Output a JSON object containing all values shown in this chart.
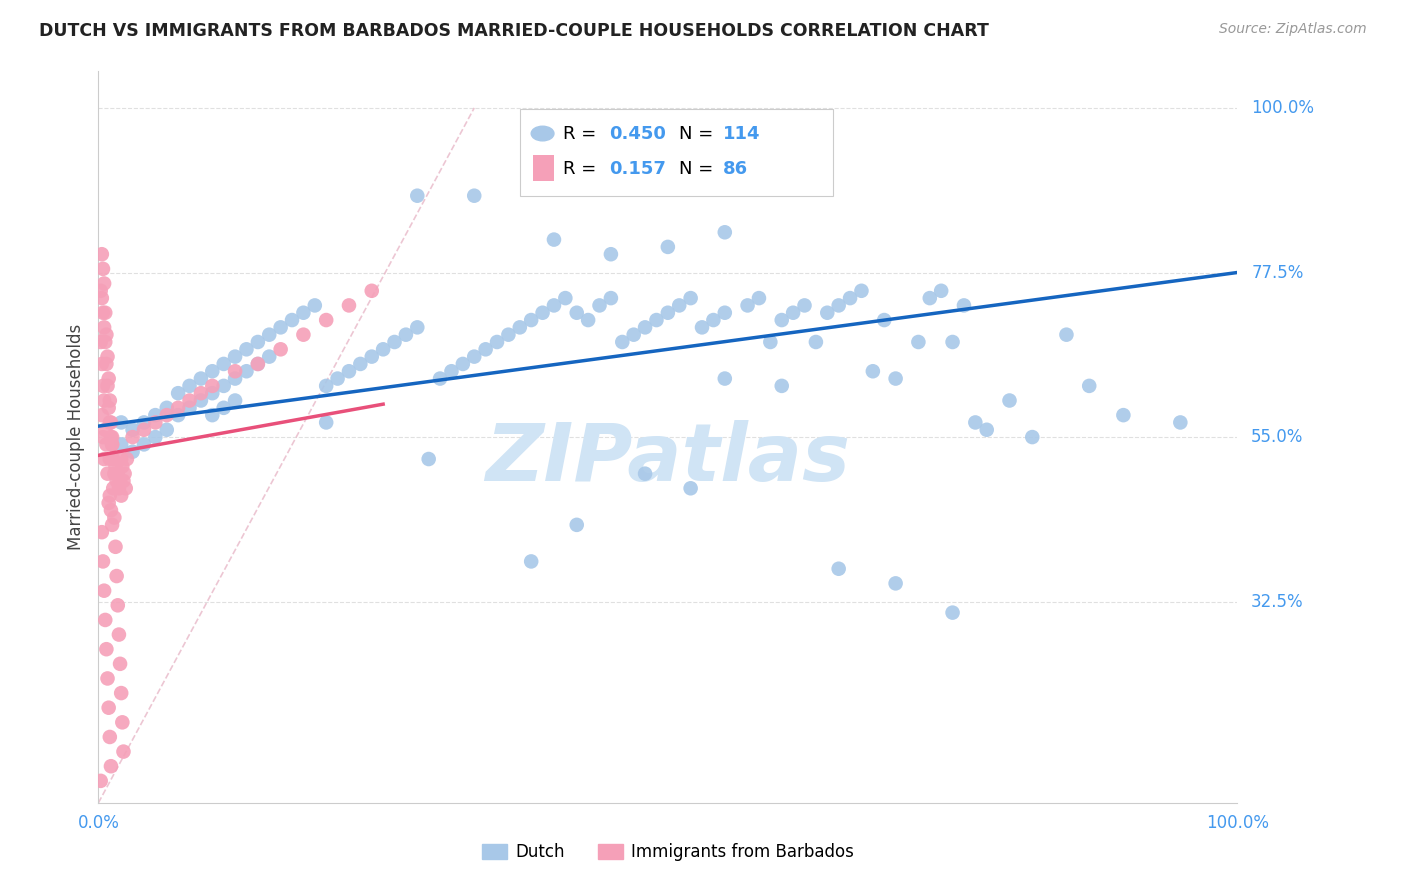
{
  "title": "DUTCH VS IMMIGRANTS FROM BARBADOS MARRIED-COUPLE HOUSEHOLDS CORRELATION CHART",
  "source": "Source: ZipAtlas.com",
  "ylabel": "Married-couple Households",
  "ytick_labels": [
    "100.0%",
    "77.5%",
    "55.0%",
    "32.5%"
  ],
  "ytick_values": [
    1.0,
    0.775,
    0.55,
    0.325
  ],
  "xtick_left": "0.0%",
  "xtick_right": "100.0%",
  "xlim": [
    0.0,
    1.0
  ],
  "ylim": [
    0.05,
    1.05
  ],
  "legend_dutch_R": "0.450",
  "legend_dutch_N": "114",
  "legend_barbados_R": "0.157",
  "legend_barbados_N": "86",
  "dutch_color": "#a8c8e8",
  "barbados_color": "#f5a0b8",
  "dutch_line_color": "#1565c0",
  "barbados_line_color": "#e8507a",
  "diagonal_color": "#e8b8c8",
  "watermark_text": "ZIPatlas",
  "watermark_color": "#d0e4f5",
  "background_color": "#ffffff",
  "grid_color": "#e0e0e0",
  "label_color": "#4499ee",
  "title_color": "#222222",
  "source_color": "#999999"
}
